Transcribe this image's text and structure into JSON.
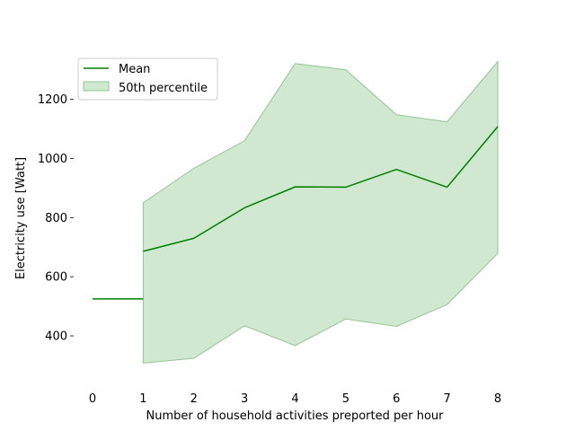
{
  "chart_data": {
    "type": "line",
    "title": "",
    "xlabel": "Number of household activities preported per hour",
    "ylabel": "Electricity use [Watt]",
    "xlim": [
      0,
      8
    ],
    "ylim": [
      230,
      1360
    ],
    "x_ticks": [
      0,
      1,
      2,
      3,
      4,
      5,
      6,
      7,
      8
    ],
    "y_ticks": [
      400,
      600,
      800,
      1000,
      1200
    ],
    "grid": false,
    "legend_position": "top-left",
    "colors": {
      "line": "#008000",
      "band": "#a8d5a8",
      "band_edge": "#90c890"
    },
    "segments": [
      {
        "x": [
          0,
          1
        ],
        "y": [
          525,
          525
        ]
      }
    ],
    "series": [
      {
        "name": "Mean",
        "x": [
          1,
          2,
          3,
          4,
          5,
          6,
          7,
          8
        ],
        "values": [
          686,
          730,
          833,
          904,
          903,
          963,
          903,
          1108
        ]
      }
    ],
    "band": {
      "name": "50th percentile",
      "x": [
        1,
        2,
        3,
        4,
        5,
        6,
        7,
        8
      ],
      "lower": [
        308,
        324,
        434,
        367,
        457,
        432,
        506,
        679
      ],
      "upper": [
        850,
        967,
        1060,
        1321,
        1300,
        1148,
        1124,
        1328
      ]
    },
    "legend": [
      "Mean",
      "50th percentile"
    ]
  }
}
